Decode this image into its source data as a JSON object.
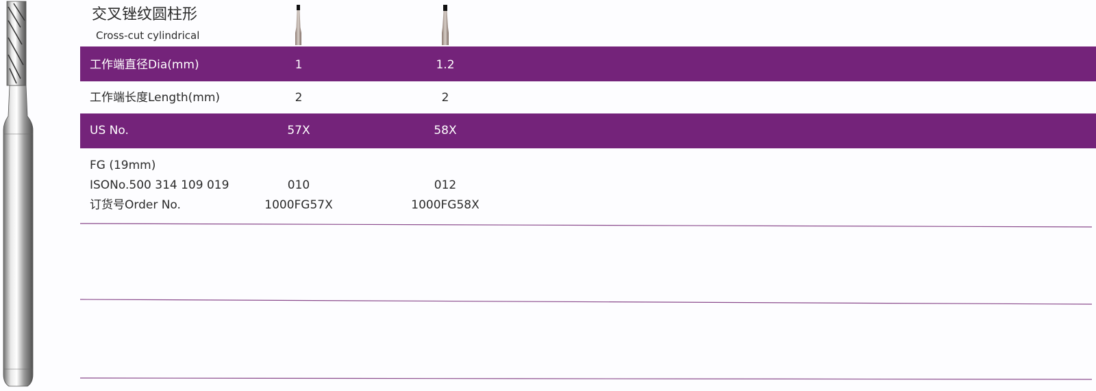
{
  "header": {
    "title": "交叉锉纹圆柱形",
    "subtitle": "Cross-cut cylindrical"
  },
  "table": {
    "rows": [
      [
        "工作端直径Dia(mm)",
        "1",
        "1.2"
      ],
      [
        "工作端长度Length(mm)",
        "2",
        "2"
      ],
      [
        "US No.",
        "57X",
        "58X"
      ],
      [
        [
          "FG (19mm)",
          "ISONo.500 314 109 019",
          "订货号Order No."
        ],
        [
          "010",
          "1000FG57X"
        ],
        [
          "012",
          "1000FG58X"
        ]
      ]
    ]
  }
}
